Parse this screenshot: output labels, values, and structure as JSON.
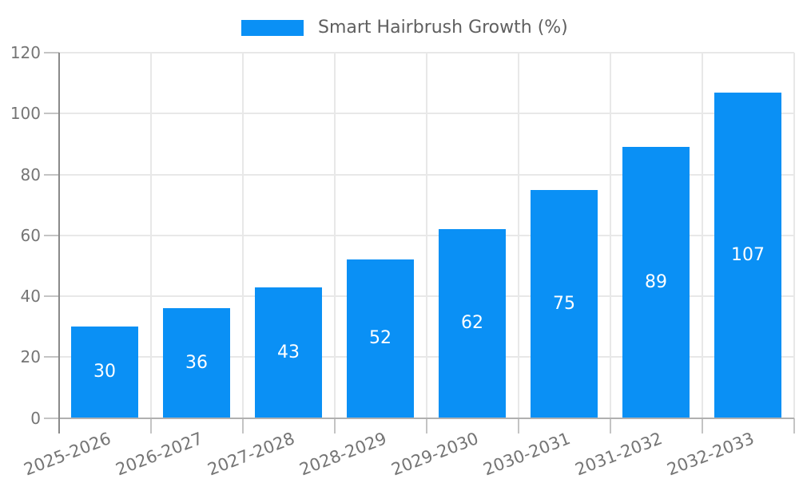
{
  "chart_data": {
    "type": "bar",
    "title": "",
    "legend_entries": [
      "Smart Hairbrush Growth (%)"
    ],
    "legend_position": "top",
    "categories": [
      "2025-2026",
      "2026-2027",
      "2027-2028",
      "2028-2029",
      "2029-2030",
      "2030-2031",
      "2031-2032",
      "2032-2033"
    ],
    "values": [
      30,
      36,
      43,
      52,
      62,
      75,
      89,
      107
    ],
    "xlabel": "",
    "ylabel": "",
    "ylim": [
      0,
      120
    ],
    "yticks": [
      0,
      20,
      40,
      60,
      80,
      100,
      120
    ],
    "grid": true,
    "value_labels": "inside-center",
    "colors": {
      "bar": "#0a90f5",
      "value_label": "#ffffff",
      "grid": "#e8e8e8",
      "axis": "#8a8a8a",
      "baseline": "#b0b0b0",
      "tick": "#c4c4c4",
      "axis_text": "#757575",
      "legend_text": "#5f5f5f",
      "background": "#ffffff"
    }
  }
}
